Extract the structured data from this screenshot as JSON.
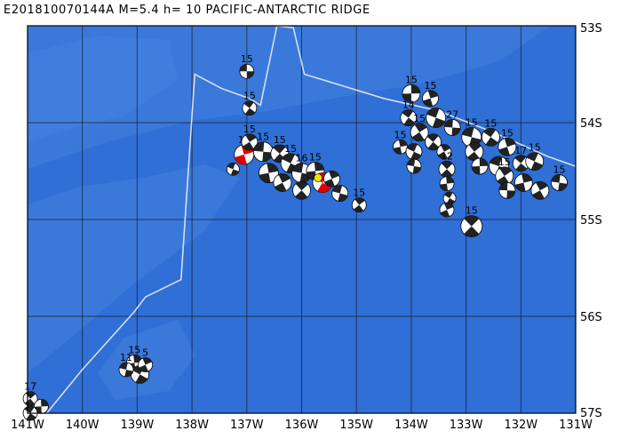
{
  "title": "E201810070144A  M=5.4  h= 10  PACIFIC-ANTARCTIC  RIDGE",
  "map": {
    "lon_range": [
      -141,
      -131
    ],
    "lat_range": [
      -57,
      -53
    ],
    "lon_ticks": [
      {
        "value": -141,
        "label": "141W"
      },
      {
        "value": -140,
        "label": "140W"
      },
      {
        "value": -139,
        "label": "139W"
      },
      {
        "value": -138,
        "label": "138W"
      },
      {
        "value": -137,
        "label": "137W"
      },
      {
        "value": -136,
        "label": "136W"
      },
      {
        "value": -135,
        "label": "135W"
      },
      {
        "value": -134,
        "label": "134W"
      },
      {
        "value": -133,
        "label": "133W"
      },
      {
        "value": -132,
        "label": "132W"
      },
      {
        "value": -131,
        "label": "131W"
      }
    ],
    "lat_ticks": [
      {
        "value": -53,
        "label": "53S"
      },
      {
        "value": -54,
        "label": "54S"
      },
      {
        "value": -55,
        "label": "55S"
      },
      {
        "value": -56,
        "label": "56S"
      },
      {
        "value": -57,
        "label": "57S"
      }
    ],
    "colors": {
      "ocean": "#2f6fd6",
      "shallow": "#4a86e0",
      "grid": "#1a1a1a",
      "plate_boundary": "#d6dff0",
      "beachball_fill": "#222222",
      "beachball_highlight": "#e00000",
      "main_event_marker": "#f0e000"
    },
    "plate_boundary": [
      [
        -140.65,
        -57.0
      ],
      [
        -140.0,
        -56.55
      ],
      [
        -139.05,
        -55.95
      ],
      [
        -138.85,
        -55.8
      ],
      [
        -138.2,
        -55.62
      ],
      [
        -137.95,
        -53.5
      ],
      [
        -137.45,
        -53.65
      ],
      [
        -136.95,
        -53.75
      ],
      [
        -136.75,
        -53.82
      ],
      [
        -136.45,
        -53.0
      ],
      [
        -136.15,
        -53.02
      ],
      [
        -135.95,
        -53.5
      ],
      [
        -134.5,
        -53.75
      ],
      [
        -133.5,
        -53.88
      ],
      [
        -132.5,
        -54.1
      ],
      [
        -131.5,
        -54.35
      ],
      [
        -131.0,
        -54.45
      ]
    ],
    "main_event": {
      "lon": -135.7,
      "lat": -54.57
    },
    "events": [
      {
        "lon": -137.0,
        "lat": -53.47,
        "label": "15",
        "r": 8,
        "red": false
      },
      {
        "lon": -136.95,
        "lat": -53.85,
        "label": "15",
        "r": 8,
        "red": false
      },
      {
        "lon": -137.05,
        "lat": -54.33,
        "label": "15",
        "r": 11,
        "red": true
      },
      {
        "lon": -137.25,
        "lat": -54.48,
        "label": "",
        "r": 7,
        "red": false
      },
      {
        "lon": -136.95,
        "lat": -54.2,
        "label": "15",
        "r": 9,
        "red": false
      },
      {
        "lon": -136.7,
        "lat": -54.3,
        "label": "15",
        "r": 11,
        "red": false
      },
      {
        "lon": -136.4,
        "lat": -54.32,
        "label": "15",
        "r": 10,
        "red": false
      },
      {
        "lon": -136.6,
        "lat": -54.52,
        "label": "",
        "r": 11,
        "red": false
      },
      {
        "lon": -136.2,
        "lat": -54.42,
        "label": "15",
        "r": 11,
        "red": false
      },
      {
        "lon": -136.35,
        "lat": -54.62,
        "label": "",
        "r": 10,
        "red": false
      },
      {
        "lon": -136.0,
        "lat": -54.52,
        "label": "16",
        "r": 11,
        "red": false
      },
      {
        "lon": -136.0,
        "lat": -54.7,
        "label": "",
        "r": 10,
        "red": false
      },
      {
        "lon": -135.75,
        "lat": -54.5,
        "label": "15",
        "r": 10,
        "red": false
      },
      {
        "lon": -135.62,
        "lat": -54.62,
        "label": "",
        "r": 11,
        "red": true
      },
      {
        "lon": -135.45,
        "lat": -54.58,
        "label": "",
        "r": 9,
        "red": false
      },
      {
        "lon": -135.3,
        "lat": -54.73,
        "label": "",
        "r": 9,
        "red": false
      },
      {
        "lon": -134.95,
        "lat": -54.85,
        "label": "15",
        "r": 8,
        "red": false
      },
      {
        "lon": -134.0,
        "lat": -53.7,
        "label": "15",
        "r": 10,
        "red": false
      },
      {
        "lon": -134.05,
        "lat": -53.95,
        "label": "14",
        "r": 9,
        "red": false
      },
      {
        "lon": -133.65,
        "lat": -53.75,
        "label": "15",
        "r": 9,
        "red": false
      },
      {
        "lon": -133.55,
        "lat": -53.95,
        "label": "",
        "r": 11,
        "red": false
      },
      {
        "lon": -133.85,
        "lat": -54.1,
        "label": "15",
        "r": 10,
        "red": false
      },
      {
        "lon": -133.25,
        "lat": -54.05,
        "label": "27",
        "r": 9,
        "red": false
      },
      {
        "lon": -133.6,
        "lat": -54.2,
        "label": "",
        "r": 9,
        "red": false
      },
      {
        "lon": -134.2,
        "lat": -54.25,
        "label": "15",
        "r": 8,
        "red": false
      },
      {
        "lon": -133.95,
        "lat": -54.3,
        "label": "",
        "r": 9,
        "red": false
      },
      {
        "lon": -133.4,
        "lat": -54.3,
        "label": "",
        "r": 8,
        "red": false
      },
      {
        "lon": -133.95,
        "lat": -54.45,
        "label": "",
        "r": 8,
        "red": false
      },
      {
        "lon": -133.35,
        "lat": -54.48,
        "label": "12",
        "r": 9,
        "red": false
      },
      {
        "lon": -133.35,
        "lat": -54.63,
        "label": "",
        "r": 8,
        "red": false
      },
      {
        "lon": -133.3,
        "lat": -54.78,
        "label": "",
        "r": 7,
        "red": false
      },
      {
        "lon": -133.35,
        "lat": -54.9,
        "label": "",
        "r": 8,
        "red": false
      },
      {
        "lon": -132.9,
        "lat": -54.15,
        "label": "15",
        "r": 11,
        "red": false
      },
      {
        "lon": -132.85,
        "lat": -54.3,
        "label": "",
        "r": 10,
        "red": false
      },
      {
        "lon": -132.75,
        "lat": -54.45,
        "label": "",
        "r": 9,
        "red": false
      },
      {
        "lon": -132.55,
        "lat": -54.15,
        "label": "15",
        "r": 10,
        "red": false
      },
      {
        "lon": -132.25,
        "lat": -54.25,
        "label": "15",
        "r": 10,
        "red": false
      },
      {
        "lon": -132.4,
        "lat": -54.45,
        "label": "",
        "r": 11,
        "red": false
      },
      {
        "lon": -132.3,
        "lat": -54.55,
        "label": "15",
        "r": 10,
        "red": false
      },
      {
        "lon": -132.25,
        "lat": -54.7,
        "label": "",
        "r": 9,
        "red": false
      },
      {
        "lon": -132.0,
        "lat": -54.42,
        "label": "17",
        "r": 9,
        "red": false
      },
      {
        "lon": -131.95,
        "lat": -54.62,
        "label": "",
        "r": 10,
        "red": false
      },
      {
        "lon": -131.75,
        "lat": -54.4,
        "label": "15",
        "r": 10,
        "red": false
      },
      {
        "lon": -131.65,
        "lat": -54.7,
        "label": "",
        "r": 10,
        "red": false
      },
      {
        "lon": -131.3,
        "lat": -54.62,
        "label": "15",
        "r": 9,
        "red": false
      },
      {
        "lon": -132.9,
        "lat": -55.07,
        "label": "15",
        "r": 12,
        "red": false
      },
      {
        "lon": -139.05,
        "lat": -56.48,
        "label": "15",
        "r": 9,
        "red": false
      },
      {
        "lon": -138.95,
        "lat": -56.6,
        "label": "",
        "r": 10,
        "red": false
      },
      {
        "lon": -138.85,
        "lat": -56.5,
        "label": "5",
        "r": 8,
        "red": false
      },
      {
        "lon": -139.2,
        "lat": -56.55,
        "label": "11",
        "r": 8,
        "red": false
      },
      {
        "lon": -140.95,
        "lat": -56.85,
        "label": "17",
        "r": 8,
        "red": false
      },
      {
        "lon": -140.75,
        "lat": -56.93,
        "label": "",
        "r": 8,
        "red": false
      },
      {
        "lon": -140.95,
        "lat": -57.0,
        "label": "",
        "r": 8,
        "red": false
      }
    ]
  }
}
